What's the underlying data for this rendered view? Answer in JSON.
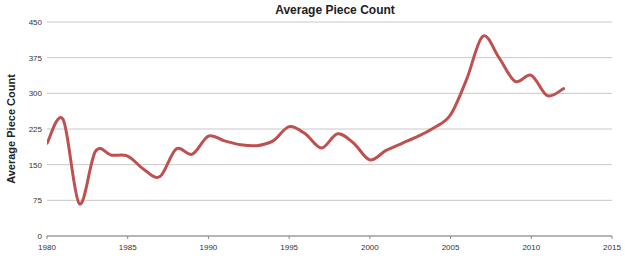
{
  "chart_data": {
    "type": "line",
    "title": "Average Piece Count",
    "y_label": "Average Piece Count",
    "x": [
      1980,
      1981,
      1982,
      1983,
      1984,
      1985,
      1986,
      1987,
      1988,
      1989,
      1990,
      1991,
      1992,
      1993,
      1994,
      1995,
      1996,
      1997,
      1998,
      1999,
      2000,
      2001,
      2002,
      2003,
      2004,
      2005,
      2006,
      2007,
      2008,
      2009,
      2010,
      2011,
      2012
    ],
    "values": [
      195,
      245,
      68,
      178,
      170,
      168,
      140,
      125,
      183,
      172,
      210,
      200,
      192,
      190,
      200,
      230,
      215,
      185,
      215,
      195,
      160,
      180,
      195,
      210,
      228,
      255,
      330,
      420,
      375,
      325,
      338,
      295,
      310
    ],
    "color": "#bf5050",
    "line_style": "smooth",
    "xlim": [
      1980,
      2015
    ],
    "xticks": [
      1980,
      1985,
      1990,
      1995,
      2000,
      2005,
      2010,
      2015
    ],
    "ylim": [
      0,
      450
    ],
    "yticks": [
      0,
      75,
      150,
      225,
      300,
      375,
      450
    ],
    "grid": true
  }
}
